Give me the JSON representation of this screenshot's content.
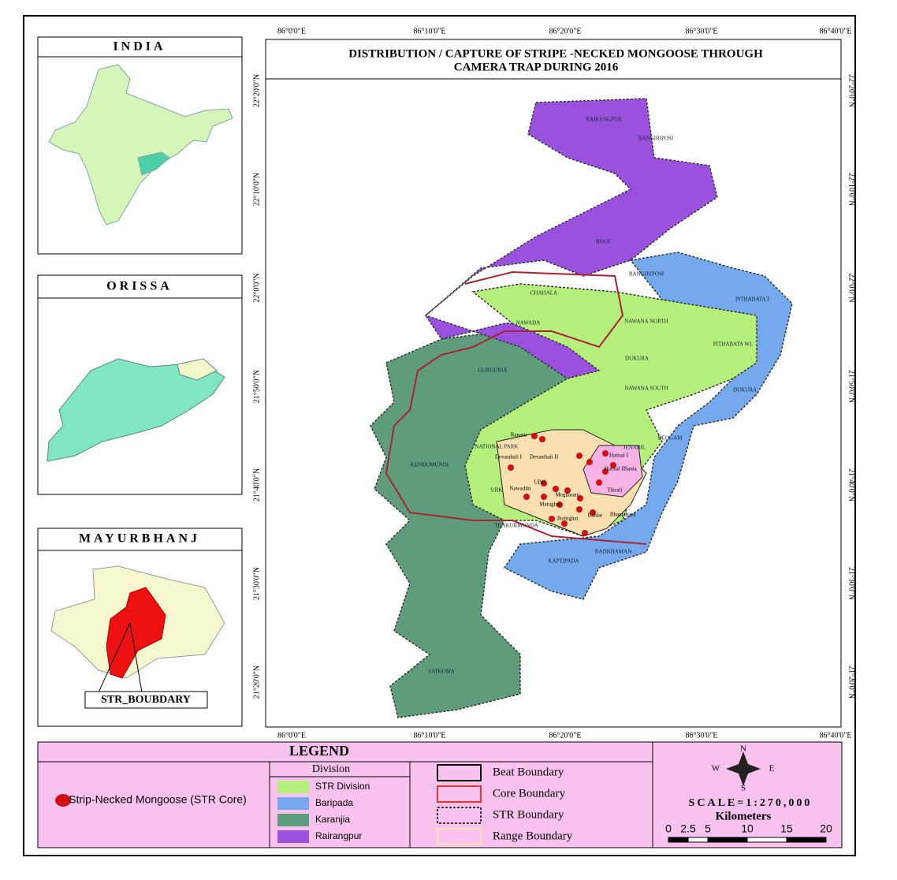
{
  "insets": [
    {
      "title": "INDIA"
    },
    {
      "title": "ORISSA"
    },
    {
      "title": "MAYURBHANJ",
      "label": "STR_BOUBDARY"
    }
  ],
  "map": {
    "title_lines": [
      "DISTRIBUTION / CAPTURE OF STRIPE -NECKED MONGOOSE THROUGH",
      "CAMERA TRAP DURING 2016"
    ],
    "lon_ticks": [
      "86°0'0\"E",
      "86°10'0\"E",
      "86°20'0\"E",
      "86°30'0\"E",
      "86°40'0\"E"
    ],
    "lat_ticks": [
      "22°20'0\"N",
      "22°10'0\"N",
      "22°0'0\"N",
      "21°50'0\"N",
      "21°40'0\"N",
      "21°30'0\"N",
      "21°20'0\"N"
    ],
    "range_labels": [
      "RAIRANGPUR",
      "BANGIRIPOSI",
      "BISOI",
      "BANGIRIPOSI",
      "CHAHALA",
      "PITHABATA T",
      "NAWANA NORTH",
      "NAWADA",
      "PITHABATA WL",
      "DUKURA",
      "GURGURIA",
      "NAWANA SOUTH",
      "DUKURA",
      "DEOGAM",
      "NATIONAL PARK",
      "JENABIL",
      "KENDUMUNDI",
      "UBK",
      "THAKURMUNDA",
      "BADKHAMAN",
      "KAPTIPADA",
      "SATKOSIA"
    ],
    "beat_labels": [
      "Ranasu",
      "Devasthali I",
      "Devasthali II",
      "Hatisal I",
      "Hatisal II",
      "Sania",
      "Tikrali",
      "UBK",
      "Nawadihi",
      "Meghasani",
      "Matughar",
      "Jhobighat",
      "Baldar",
      "Bhanjabasa"
    ]
  },
  "legend": {
    "title": "LEGEND",
    "species": "Strip-Necked Mongoose (STR Core)",
    "division_header": "Division",
    "divisions": [
      {
        "name": "STR Division",
        "color": "#b5f07c"
      },
      {
        "name": "Baripada",
        "color": "#74a9ee"
      },
      {
        "name": "Karanjia",
        "color": "#5f9c7c"
      },
      {
        "name": "Rairangpur",
        "color": "#9a52de"
      }
    ],
    "boundaries": [
      "Beat Boundary",
      "Core Boundary",
      "STR Boundary",
      "Range Boundary"
    ],
    "compass": [
      "N",
      "S",
      "E",
      "W"
    ],
    "scale": "SCALE=1:270,000",
    "scale_unit": "Kilometers",
    "scale_ticks": [
      0,
      2.5,
      5,
      10,
      15,
      20
    ]
  }
}
